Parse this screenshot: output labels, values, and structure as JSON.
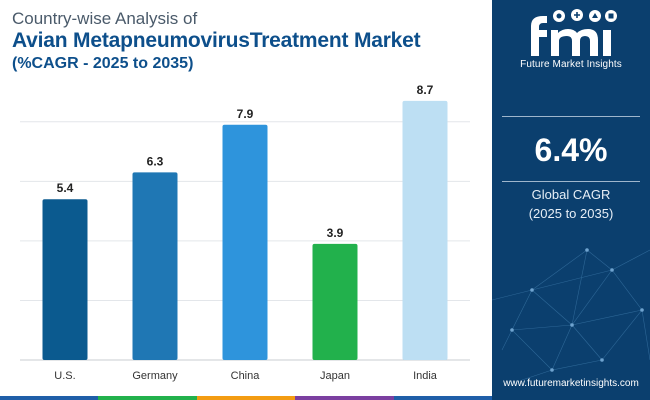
{
  "header": {
    "line1": "Country-wise Analysis of",
    "line2": "Avian MetapneumovirusTreatment Market",
    "line3": "(%CAGR - 2025 to 2035)"
  },
  "chart_data": {
    "type": "bar",
    "categories": [
      "U.S.",
      "Germany",
      "China",
      "Japan",
      "India"
    ],
    "values": [
      5.4,
      6.3,
      7.9,
      3.9,
      8.7
    ],
    "data_labels": [
      "5.4",
      "6.3",
      "7.9",
      "3.9",
      "8.7"
    ],
    "colors": [
      "#0b5a8f",
      "#1f77b4",
      "#2e94dc",
      "#22b14c",
      "#bddff3"
    ],
    "ylim": [
      0,
      9
    ],
    "grid": true,
    "legend": "none"
  },
  "sidebar": {
    "logo_text": "Future Market Insights",
    "cagr_value": "6.4%",
    "cagr_label_line1": "Global CAGR",
    "cagr_label_line2": "(2025 to 2035)",
    "url": "www.futuremarketinsights.com",
    "bg_color": "#0b3f6e"
  },
  "bottom_strip_colors": [
    "#1f5fa8",
    "#22b14c",
    "#f39c12",
    "#7b3fa0",
    "#1f5fa8"
  ]
}
